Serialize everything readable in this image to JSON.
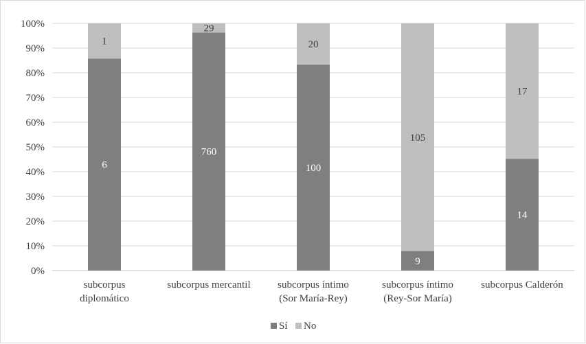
{
  "chart_data": {
    "type": "bar",
    "stacked": "percent",
    "title": "",
    "xlabel": "",
    "ylabel": "",
    "ylim": [
      0,
      100
    ],
    "y_ticks": [
      "0%",
      "10%",
      "20%",
      "30%",
      "40%",
      "50%",
      "60%",
      "70%",
      "80%",
      "90%",
      "100%"
    ],
    "grid": true,
    "legend": "bottom",
    "categories": [
      [
        "subcorpus",
        "diplomático"
      ],
      [
        "subcorpus mercantil"
      ],
      [
        "subcorpus íntimo",
        "(Sor María-Rey)"
      ],
      [
        "subcorpus íntimo",
        "(Rey-Sor María)"
      ],
      [
        "subcorpus Calderón"
      ]
    ],
    "series": [
      {
        "name": "Sí",
        "color": "#7f7f80",
        "label_color": "#ffffff",
        "values": [
          6,
          760,
          100,
          9,
          14
        ],
        "percent": [
          85.7,
          96.3,
          83.3,
          7.9,
          45.2
        ]
      },
      {
        "name": "No",
        "color": "#bfbfc0",
        "label_color": "#404040",
        "values": [
          1,
          29,
          20,
          105,
          17
        ],
        "percent": [
          14.3,
          3.7,
          16.7,
          92.1,
          54.8
        ]
      }
    ],
    "gridline_color": "#d9d9d9",
    "axis_color": "#bfbfbf"
  }
}
